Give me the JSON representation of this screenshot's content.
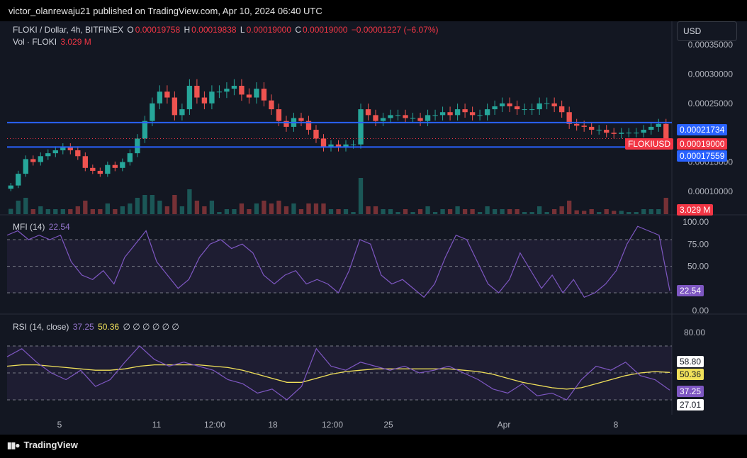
{
  "publish_line": "victor_olanrewaju21 published on TradingView.com, Apr 10, 2024 06:40 UTC",
  "legend": {
    "symbol": "FLOKI / Dollar, 4h, BITFINEX",
    "o_label": "O",
    "o": "0.00019758",
    "h_label": "H",
    "h": "0.00019838",
    "l_label": "L",
    "l": "0.00019000",
    "c_label": "C",
    "c": "0.00019000",
    "change": "−0.00001227 (−6.07%)",
    "vol_label": "Vol · FLOKI",
    "vol": "3.029 M"
  },
  "currency_button": "USD",
  "price_labels": {
    "resistance": "0.00021734",
    "current": "0.00019000",
    "support": "0.00017559",
    "symbol_tag": "FLOKIUSD",
    "volume": "3.029 M"
  },
  "mfi": {
    "label": "MFI (14)",
    "value": "22.54"
  },
  "rsi": {
    "label": "RSI (14, close)",
    "value": "37.25",
    "ma": "50.36",
    "placeholders": "∅ ∅ ∅ ∅ ∅ ∅",
    "upper_tag": "58.80",
    "lower_tag": "27.01"
  },
  "footer": "TradingView",
  "colors": {
    "up": "#26a69a",
    "down": "#ef5350",
    "level_line": "#2962ff",
    "mfi": "#7e57c2",
    "rsi_ma": "#f0e05a",
    "background": "#131722"
  },
  "chart_data": [
    {
      "type": "candlestick",
      "title": "FLOKI / Dollar, 4h, BITFINEX",
      "x_ticks": [
        "5",
        "11",
        "12:00",
        "18",
        "12:00",
        "25",
        "Apr",
        "8"
      ],
      "y_ticks": [
        "0.00035000",
        "0.00030000",
        "0.00025000",
        "0.00015000",
        "0.00010000"
      ],
      "ylim": [
        6e-05,
        0.00039
      ],
      "closes": [
        0.00011,
        0.00013,
        0.000155,
        0.00015,
        0.00016,
        0.000165,
        0.00017,
        0.000175,
        0.00017,
        0.00016,
        0.00014,
        0.000135,
        0.00013,
        0.000145,
        0.00014,
        0.00015,
        0.000165,
        0.00019,
        0.00022,
        0.00025,
        0.00027,
        0.00026,
        0.00023,
        0.00024,
        0.00028,
        0.00026,
        0.00025,
        0.00027,
        0.00027,
        0.000275,
        0.00028,
        0.000265,
        0.00026,
        0.000275,
        0.000255,
        0.00024,
        0.00022,
        0.00021,
        0.000225,
        0.00022,
        0.000205,
        0.00019,
        0.000175,
        0.00018,
        0.000175,
        0.00018,
        0.00018,
        0.00024,
        0.00023,
        0.00022,
        0.000225,
        0.00023,
        0.00023,
        0.000225,
        0.000225,
        0.00022,
        0.00023,
        0.00023,
        0.000235,
        0.00023,
        0.00024,
        0.000235,
        0.00023,
        0.00023,
        0.00024,
        0.000245,
        0.00025,
        0.000245,
        0.00024,
        0.00024,
        0.00024,
        0.00025,
        0.00025,
        0.000245,
        0.000235,
        0.000215,
        0.000212,
        0.00021,
        0.000205,
        0.000205,
        0.0002,
        0.000198,
        0.0002,
        0.0002,
        0.0002,
        0.000205,
        0.00021,
        0.000215,
        0.00019
      ],
      "volume_last": "3.029 M"
    },
    {
      "type": "line",
      "title": "MFI (14)",
      "ylim": [
        0,
        100
      ],
      "y_ticks": [
        "100.00",
        "75.00",
        "50.00",
        "0.00"
      ],
      "bands": [
        20,
        50,
        80
      ],
      "values": [
        85,
        90,
        80,
        85,
        80,
        85,
        55,
        40,
        35,
        45,
        30,
        60,
        75,
        90,
        55,
        40,
        25,
        35,
        60,
        75,
        80,
        70,
        75,
        65,
        40,
        30,
        40,
        45,
        30,
        35,
        30,
        20,
        45,
        80,
        75,
        40,
        30,
        35,
        25,
        15,
        30,
        60,
        85,
        80,
        55,
        30,
        20,
        35,
        65,
        45,
        25,
        40,
        20,
        35,
        15,
        20,
        30,
        45,
        75,
        95,
        90,
        85,
        22.54
      ],
      "last_value": 22.54
    },
    {
      "type": "line",
      "title": "RSI (14, close)",
      "ylim": [
        20,
        90
      ],
      "y_ticks": [
        "80.00"
      ],
      "bands": [
        30,
        50,
        70
      ],
      "series": [
        {
          "name": "RSI",
          "values": [
            62,
            68,
            58,
            50,
            45,
            52,
            40,
            45,
            58,
            70,
            60,
            55,
            58,
            55,
            52,
            45,
            42,
            35,
            38,
            30,
            40,
            68,
            55,
            52,
            58,
            55,
            52,
            55,
            50,
            52,
            55,
            50,
            45,
            38,
            35,
            42,
            33,
            35,
            30,
            45,
            55,
            52,
            58,
            48,
            45,
            37.25
          ]
        },
        {
          "name": "MA",
          "values": [
            55,
            56,
            56,
            55,
            54,
            53,
            52,
            52,
            53,
            55,
            56,
            56,
            56,
            56,
            55,
            54,
            52,
            49,
            46,
            43,
            43,
            46,
            49,
            51,
            52,
            53,
            53,
            53,
            53,
            53,
            53,
            52,
            51,
            49,
            46,
            43,
            41,
            39,
            38,
            39,
            42,
            45,
            48,
            50,
            51,
            50.36
          ]
        }
      ],
      "rsi_value": 37.25,
      "ma_value": 50.36
    }
  ]
}
